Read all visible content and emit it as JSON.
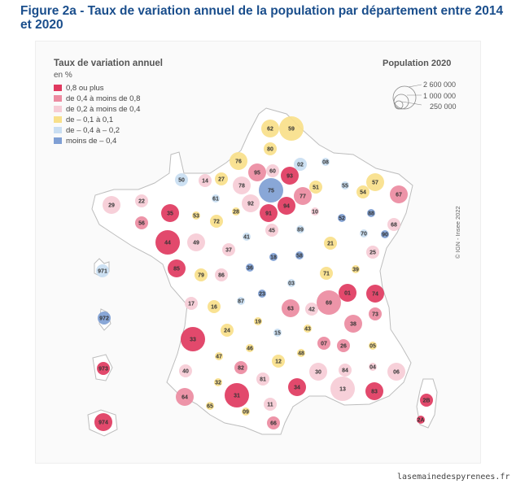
{
  "title": "Figure 2a - Taux de variation annuel de la population par département entre 2014 et 2020",
  "legend": {
    "title": "Taux de variation annuel",
    "unit": "en %",
    "classes": [
      {
        "label": "0,8 ou plus",
        "color": "#e0395f"
      },
      {
        "label": "de 0,4 à moins de 0,8",
        "color": "#ec8ba1"
      },
      {
        "label": "de 0,2 à moins de 0,4",
        "color": "#f6ccd6"
      },
      {
        "label": "de – 0,1 à 0,1",
        "color": "#f8e08a"
      },
      {
        "label": "de – 0,4 à  – 0,2",
        "color": "#c9def2"
      },
      {
        "label": "moins de – 0,4",
        "color": "#7f9fd4"
      }
    ]
  },
  "population_legend": {
    "title": "Population 2020",
    "values": [
      "2 600 000",
      "1 000 000",
      "250 000"
    ]
  },
  "credit": "© IGN - Insee 2022",
  "source": "lasemainedespyrenees.fr",
  "map": {
    "land_color": "#ffffff",
    "border_color": "#bdbdbd",
    "departments": [
      {
        "code": "62",
        "cls": 3,
        "size": 2
      },
      {
        "code": "59",
        "cls": 3,
        "size": 3
      },
      {
        "code": "80",
        "cls": 3,
        "size": 1
      },
      {
        "code": "76",
        "cls": 3,
        "size": 2
      },
      {
        "code": "02",
        "cls": 4,
        "size": 1
      },
      {
        "code": "08",
        "cls": 4,
        "size": 0
      },
      {
        "code": "60",
        "cls": 2,
        "size": 1
      },
      {
        "code": "95",
        "cls": 1,
        "size": 2
      },
      {
        "code": "93",
        "cls": 0,
        "size": 2
      },
      {
        "code": "50",
        "cls": 4,
        "size": 1
      },
      {
        "code": "14",
        "cls": 2,
        "size": 1
      },
      {
        "code": "27",
        "cls": 3,
        "size": 1
      },
      {
        "code": "78",
        "cls": 2,
        "size": 2
      },
      {
        "code": "75",
        "cls": 5,
        "size": 3
      },
      {
        "code": "77",
        "cls": 1,
        "size": 2
      },
      {
        "code": "51",
        "cls": 3,
        "size": 1
      },
      {
        "code": "55",
        "cls": 4,
        "size": 0
      },
      {
        "code": "57",
        "cls": 3,
        "size": 2
      },
      {
        "code": "67",
        "cls": 1,
        "size": 2
      },
      {
        "code": "61",
        "cls": 4,
        "size": 0
      },
      {
        "code": "92",
        "cls": 2,
        "size": 2
      },
      {
        "code": "94",
        "cls": 0,
        "size": 2
      },
      {
        "code": "10",
        "cls": 2,
        "size": 0
      },
      {
        "code": "54",
        "cls": 3,
        "size": 1
      },
      {
        "code": "88",
        "cls": 5,
        "size": 0
      },
      {
        "code": "29",
        "cls": 2,
        "size": 2
      },
      {
        "code": "22",
        "cls": 2,
        "size": 1
      },
      {
        "code": "28",
        "cls": 3,
        "size": 0
      },
      {
        "code": "91",
        "cls": 0,
        "size": 2
      },
      {
        "code": "52",
        "cls": 5,
        "size": 0
      },
      {
        "code": "68",
        "cls": 2,
        "size": 1
      },
      {
        "code": "56",
        "cls": 1,
        "size": 1
      },
      {
        "code": "35",
        "cls": 0,
        "size": 2
      },
      {
        "code": "53",
        "cls": 3,
        "size": 0
      },
      {
        "code": "72",
        "cls": 3,
        "size": 1
      },
      {
        "code": "45",
        "cls": 2,
        "size": 1
      },
      {
        "code": "89",
        "cls": 4,
        "size": 0
      },
      {
        "code": "70",
        "cls": 4,
        "size": 0
      },
      {
        "code": "90",
        "cls": 5,
        "size": 0
      },
      {
        "code": "44",
        "cls": 0,
        "size": 3
      },
      {
        "code": "49",
        "cls": 2,
        "size": 2
      },
      {
        "code": "41",
        "cls": 4,
        "size": 0
      },
      {
        "code": "21",
        "cls": 3,
        "size": 1
      },
      {
        "code": "25",
        "cls": 2,
        "size": 1
      },
      {
        "code": "37",
        "cls": 2,
        "size": 1
      },
      {
        "code": "18",
        "cls": 5,
        "size": 0
      },
      {
        "code": "58",
        "cls": 5,
        "size": 0
      },
      {
        "code": "85",
        "cls": 0,
        "size": 2
      },
      {
        "code": "79",
        "cls": 3,
        "size": 1
      },
      {
        "code": "86",
        "cls": 2,
        "size": 1
      },
      {
        "code": "36",
        "cls": 5,
        "size": 0
      },
      {
        "code": "71",
        "cls": 3,
        "size": 1
      },
      {
        "code": "39",
        "cls": 3,
        "size": 0
      },
      {
        "code": "03",
        "cls": 4,
        "size": 0
      },
      {
        "code": "01",
        "cls": 0,
        "size": 2
      },
      {
        "code": "74",
        "cls": 0,
        "size": 2
      },
      {
        "code": "23",
        "cls": 5,
        "size": 0
      },
      {
        "code": "17",
        "cls": 2,
        "size": 1
      },
      {
        "code": "16",
        "cls": 3,
        "size": 1
      },
      {
        "code": "87",
        "cls": 4,
        "size": 0
      },
      {
        "code": "69",
        "cls": 1,
        "size": 3
      },
      {
        "code": "63",
        "cls": 1,
        "size": 2
      },
      {
        "code": "42",
        "cls": 2,
        "size": 1
      },
      {
        "code": "73",
        "cls": 1,
        "size": 1
      },
      {
        "code": "19",
        "cls": 3,
        "size": 0
      },
      {
        "code": "15",
        "cls": 4,
        "size": 0
      },
      {
        "code": "43",
        "cls": 3,
        "size": 0
      },
      {
        "code": "38",
        "cls": 1,
        "size": 2
      },
      {
        "code": "24",
        "cls": 3,
        "size": 1
      },
      {
        "code": "33",
        "cls": 0,
        "size": 3
      },
      {
        "code": "07",
        "cls": 1,
        "size": 1
      },
      {
        "code": "26",
        "cls": 1,
        "size": 1
      },
      {
        "code": "05",
        "cls": 3,
        "size": 0
      },
      {
        "code": "47",
        "cls": 3,
        "size": 0
      },
      {
        "code": "46",
        "cls": 3,
        "size": 0
      },
      {
        "code": "12",
        "cls": 3,
        "size": 1
      },
      {
        "code": "48",
        "cls": 3,
        "size": 0
      },
      {
        "code": "30",
        "cls": 2,
        "size": 2
      },
      {
        "code": "84",
        "cls": 2,
        "size": 1
      },
      {
        "code": "04",
        "cls": 2,
        "size": 0
      },
      {
        "code": "06",
        "cls": 2,
        "size": 2
      },
      {
        "code": "40",
        "cls": 2,
        "size": 1
      },
      {
        "code": "82",
        "cls": 1,
        "size": 1
      },
      {
        "code": "81",
        "cls": 2,
        "size": 1
      },
      {
        "code": "32",
        "cls": 3,
        "size": 0
      },
      {
        "code": "31",
        "cls": 0,
        "size": 3
      },
      {
        "code": "34",
        "cls": 0,
        "size": 2
      },
      {
        "code": "13",
        "cls": 2,
        "size": 3
      },
      {
        "code": "83",
        "cls": 0,
        "size": 2
      },
      {
        "code": "64",
        "cls": 1,
        "size": 2
      },
      {
        "code": "65",
        "cls": 3,
        "size": 0
      },
      {
        "code": "11",
        "cls": 2,
        "size": 1
      },
      {
        "code": "09",
        "cls": 3,
        "size": 0
      },
      {
        "code": "66",
        "cls": 1,
        "size": 1
      },
      {
        "code": "2B",
        "cls": 0,
        "size": 1
      },
      {
        "code": "2A",
        "cls": 0,
        "size": 0
      },
      {
        "code": "971",
        "cls": 4,
        "size": 1
      },
      {
        "code": "972",
        "cls": 5,
        "size": 1
      },
      {
        "code": "973",
        "cls": 0,
        "size": 1
      },
      {
        "code": "974",
        "cls": 0,
        "size": 2
      }
    ]
  }
}
